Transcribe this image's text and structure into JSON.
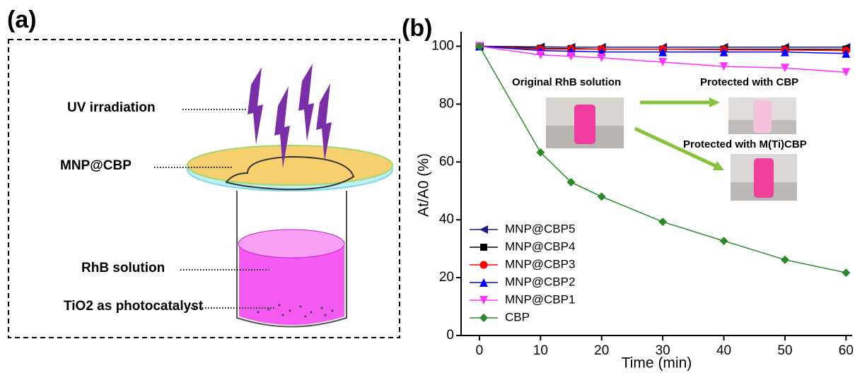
{
  "panel_a": {
    "label": "(a)",
    "texts": [
      "UV irradiation",
      "MNP@CBP",
      "RhB solution",
      "TiO2 as photocatalyst"
    ]
  },
  "chart_data": {
    "type": "line",
    "panel_label": "(b)",
    "xlabel": "Time (min)",
    "ylabel": "At/A0 (%)",
    "x": [
      0,
      10,
      15,
      20,
      30,
      40,
      50,
      60
    ],
    "series": [
      {
        "name": "MNP@CBP5",
        "color": "#1a1a80",
        "marker": "triangle-left",
        "values": [
          100,
          99.8,
          99.7,
          99.7,
          99.7,
          99.7,
          99.7,
          99.7
        ]
      },
      {
        "name": "MNP@CBP4",
        "color": "#000000",
        "marker": "square",
        "values": [
          100,
          99.3,
          99.2,
          99,
          99,
          99,
          99,
          99
        ]
      },
      {
        "name": "MNP@CBP3",
        "color": "#ff0000",
        "marker": "circle",
        "values": [
          100,
          99,
          99,
          99,
          99,
          98.8,
          98.7,
          98.5
        ]
      },
      {
        "name": "MNP@CBP2",
        "color": "#0000ff",
        "marker": "triangle-up",
        "values": [
          100,
          98.5,
          98.3,
          98,
          98,
          98,
          98,
          97.5
        ]
      },
      {
        "name": "MNP@CBP1",
        "color": "#ff33ff",
        "marker": "triangle-down",
        "values": [
          100,
          97,
          96.5,
          96,
          94.5,
          93,
          92.5,
          91
        ]
      },
      {
        "name": "CBP",
        "color": "#2a8a2a",
        "marker": "diamond",
        "values": [
          100,
          63.3,
          53,
          48,
          39.3,
          32.7,
          26.2,
          21.7
        ]
      }
    ],
    "xlim": [
      -3,
      61
    ],
    "ylim": [
      0,
      105
    ],
    "xticks": [
      0,
      10,
      20,
      30,
      40,
      50,
      60
    ],
    "yticks": [
      0,
      20,
      40,
      60,
      80,
      100
    ],
    "legend": "lower-left",
    "annotations": [
      "Original RhB solution",
      "Protected with CBP",
      "Protected with M(Ti)CBP"
    ]
  }
}
